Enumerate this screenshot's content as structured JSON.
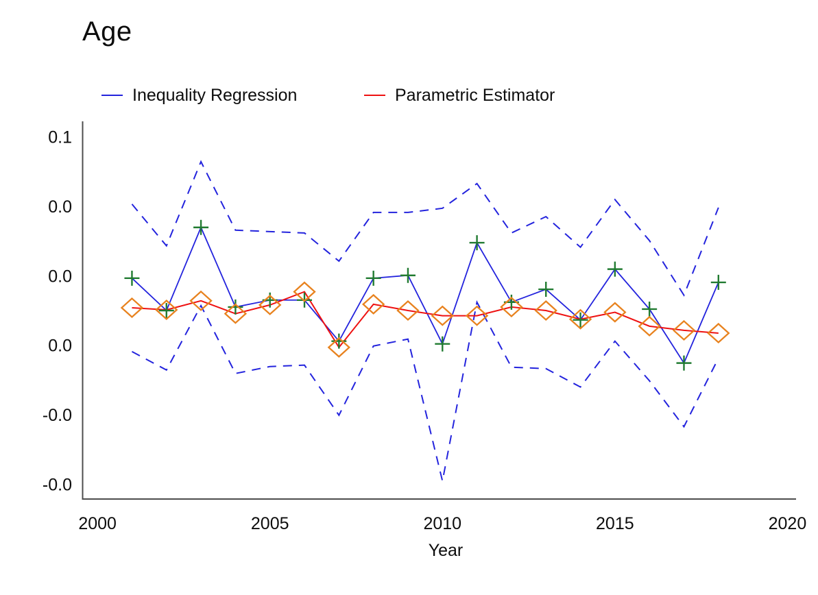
{
  "title": "Age",
  "legend": {
    "items": [
      {
        "label": "Inequality Regression",
        "color": "#2323dd"
      },
      {
        "label": "Parametric Estimator",
        "color": "#ee1111"
      }
    ]
  },
  "chart_data": {
    "type": "line",
    "title": "Age",
    "xlabel": "Year",
    "ylabel": "",
    "grid": false,
    "legend_position": "top",
    "x_ticks": [
      2000,
      2005,
      2010,
      2015,
      2020
    ],
    "y_ticks": [
      {
        "value": 0.06,
        "label": "0.1"
      },
      {
        "value": 0.04,
        "label": "0.0"
      },
      {
        "value": 0.02,
        "label": "0.0"
      },
      {
        "value": 0.0,
        "label": "0.0"
      },
      {
        "value": -0.02,
        "label": "-0.0"
      },
      {
        "value": -0.04,
        "label": "-0.0"
      }
    ],
    "xlim": [
      1999.56,
      2020.23
    ],
    "ylim": [
      -0.0441,
      0.0642
    ],
    "x": [
      2001,
      2002,
      2003,
      2004,
      2005,
      2006,
      2007,
      2008,
      2009,
      2010,
      2011,
      2012,
      2013,
      2014,
      2015,
      2016,
      2017,
      2018
    ],
    "series": [
      {
        "name": "Inequality Regression",
        "style": "solid",
        "color": "#2323dd",
        "marker": "plus",
        "marker_color": "#217b31",
        "values": [
          0.0193,
          0.01,
          0.0339,
          0.011,
          0.013,
          0.013,
          0.0012,
          0.0193,
          0.0201,
          0.0004,
          0.0295,
          0.0124,
          0.0161,
          0.0073,
          0.0219,
          0.0104,
          -0.0051,
          0.0181
        ]
      },
      {
        "name": "Parametric Estimator",
        "style": "solid",
        "color": "#ee1111",
        "marker": "diamond",
        "marker_color": "#e8821e",
        "values": [
          0.0108,
          0.0102,
          0.0128,
          0.0091,
          0.0116,
          0.0154,
          -0.0006,
          0.0118,
          0.01,
          0.0085,
          0.0085,
          0.011,
          0.01,
          0.0075,
          0.0095,
          0.0055,
          0.0043,
          0.0035
        ]
      },
      {
        "name": "Confidence band upper (dashed)",
        "style": "dashed",
        "color": "#2323dd",
        "marker": "none",
        "values": [
          0.0406,
          0.0286,
          0.0528,
          0.0331,
          0.0327,
          0.0323,
          0.0242,
          0.0382,
          0.0382,
          0.0394,
          0.0465,
          0.0323,
          0.037,
          0.0282,
          0.0419,
          0.0301,
          0.0144,
          0.0396
        ]
      },
      {
        "name": "Confidence band lower (dashed)",
        "style": "dashed",
        "color": "#2323dd",
        "marker": "none",
        "values": [
          -0.0018,
          -0.0071,
          0.0114,
          -0.0081,
          -0.0061,
          -0.0057,
          -0.0201,
          -0.0002,
          0.0018,
          -0.039,
          0.0124,
          -0.0063,
          -0.0067,
          -0.012,
          0.0012,
          -0.0102,
          -0.0234,
          -0.0037
        ]
      }
    ]
  }
}
